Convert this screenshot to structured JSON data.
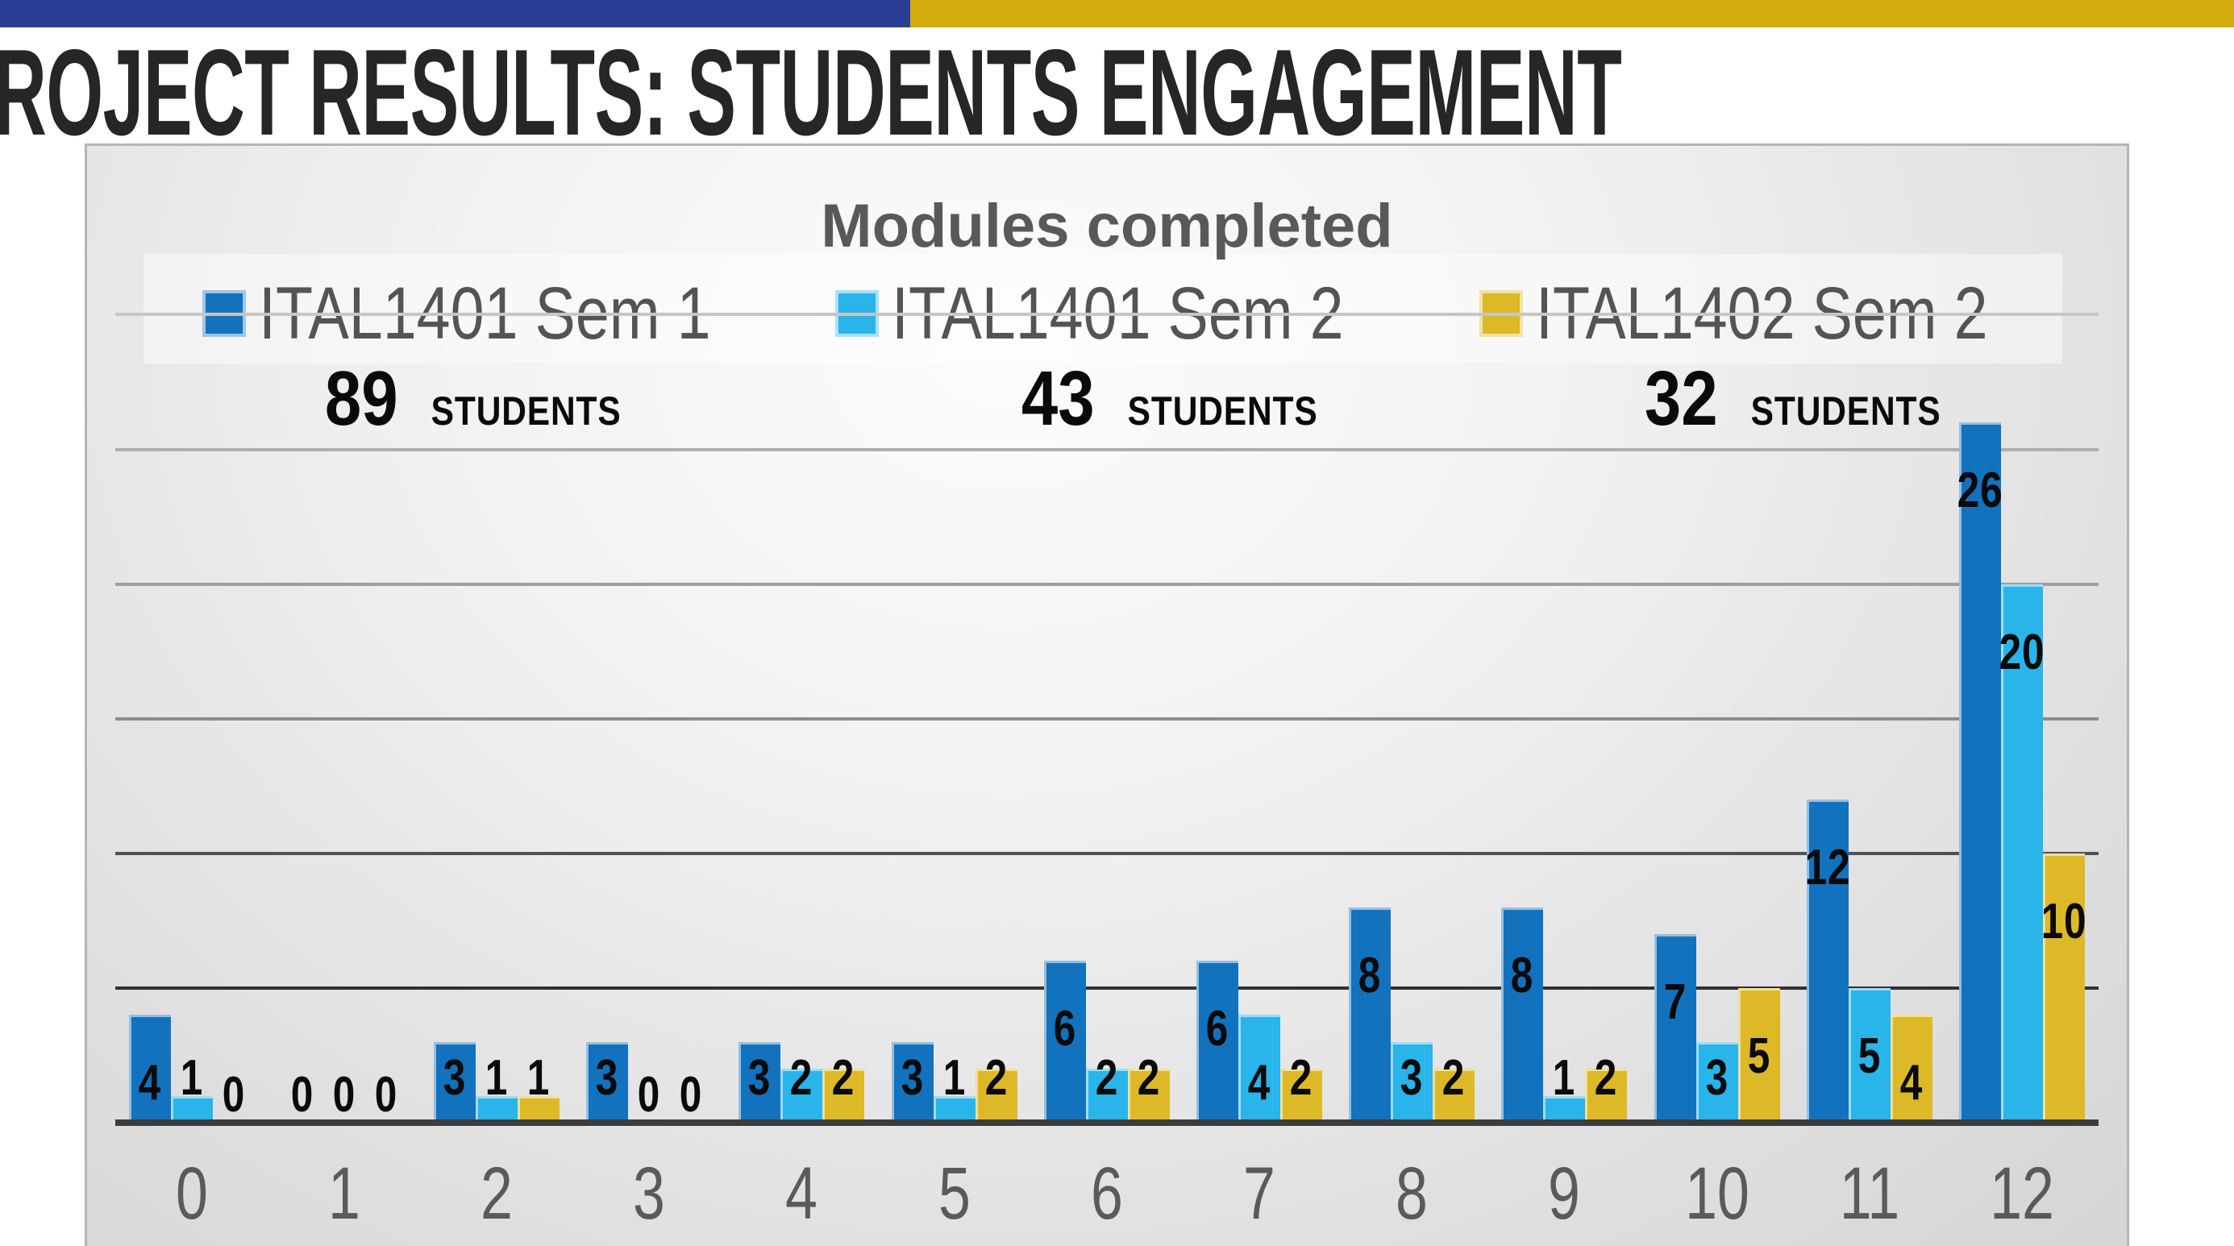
{
  "banner": {
    "blue_color": "#2B3E96",
    "gold_color": "#D5AD0E"
  },
  "page_title": "ROJECT RESULTS: STUDENTS ENGAGEMENT",
  "chart_data": {
    "type": "bar",
    "title": "Modules completed",
    "xlabel": "",
    "ylabel": "",
    "categories": [
      "0",
      "1",
      "2",
      "3",
      "4",
      "5",
      "6",
      "7",
      "8",
      "9",
      "10",
      "11",
      "12"
    ],
    "series": [
      {
        "name": "ITAL1401 Sem 1",
        "students": "89",
        "students_word": "STUDENTS",
        "color": "#1272BD",
        "values": [
          4,
          0,
          3,
          3,
          3,
          3,
          6,
          6,
          8,
          8,
          7,
          12,
          26
        ]
      },
      {
        "name": "ITAL1401 Sem 2",
        "students": "43",
        "students_word": "STUDENTS",
        "color": "#29B4EA",
        "values": [
          1,
          0,
          1,
          0,
          2,
          1,
          2,
          4,
          3,
          1,
          3,
          5,
          20
        ]
      },
      {
        "name": "ITAL1402 Sem 2",
        "students": "32",
        "students_word": "STUDENTS",
        "color": "#DDB927",
        "values": [
          0,
          0,
          1,
          0,
          2,
          2,
          2,
          2,
          2,
          2,
          5,
          4,
          10
        ]
      }
    ],
    "ylim": [
      0,
      35
    ],
    "grid": true,
    "legend_position": "top",
    "gridlines": [
      {
        "value": 30,
        "color": "#C6C6C6"
      },
      {
        "value": 25,
        "color": "#AFAFAF"
      },
      {
        "value": 20,
        "color": "#9F9F9F"
      },
      {
        "value": 15,
        "color": "#8C8C8C"
      },
      {
        "value": 10,
        "color": "#515151"
      },
      {
        "value": 5,
        "color": "#303030"
      }
    ],
    "axis_color": "#3C3C3C",
    "value_label_color": "#0A0A0A",
    "xtick_color": "#5A5A5A"
  }
}
